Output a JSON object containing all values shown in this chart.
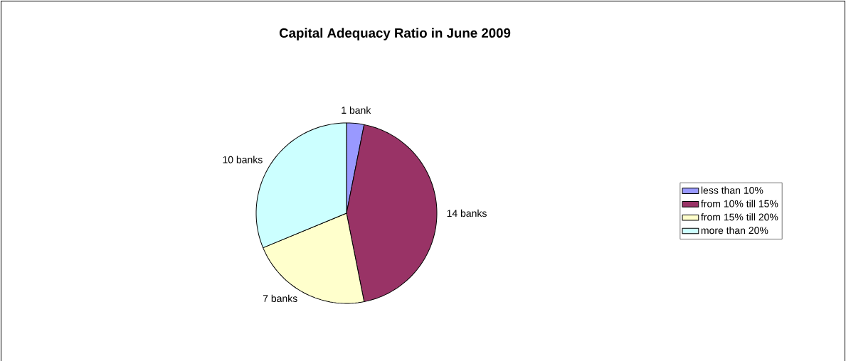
{
  "chart_data": {
    "type": "pie",
    "title": "Capital Adequacy Ratio in June 2009",
    "categories": [
      "less than 10%",
      "from 10% till 15%",
      "from 15% till 20%",
      "more than 20%"
    ],
    "values": [
      1,
      14,
      7,
      10
    ],
    "colors": [
      "#9999ff",
      "#993366",
      "#ffffcc",
      "#ccffff"
    ],
    "value_labels": [
      "1 bank",
      "14 banks",
      "7 banks",
      "10 banks"
    ],
    "legend": "right"
  }
}
